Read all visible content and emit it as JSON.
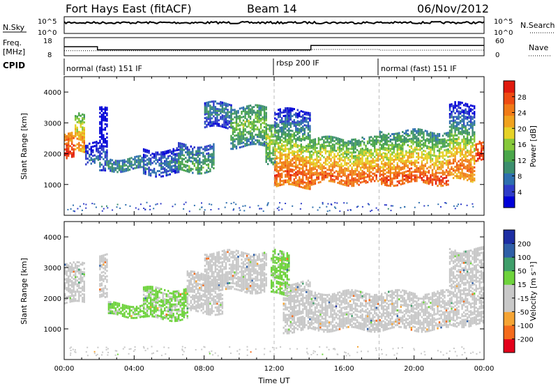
{
  "header": {
    "station": "Fort Hays East (fitACF)",
    "beam": "Beam 14",
    "date": "06/Nov/2012"
  },
  "status_panels": {
    "nsky_label": "N.Sky",
    "nsky_ticks": [
      "10^5",
      "10^0"
    ],
    "nsearch_label": "N.Search",
    "nsearch_ticks": [
      "10^5",
      "10^0"
    ],
    "freq_label": "Freq.",
    "freq_unit": "[MHz]",
    "freq_ticks": [
      "18",
      "8"
    ],
    "nave_label": "Nave",
    "nave_ticks": [
      "60",
      "0"
    ],
    "cpid_label": "CPID",
    "cpid_segments": [
      {
        "label": "normal (fast) 151 IF",
        "start_hour": 0,
        "end_hour": 12
      },
      {
        "label": "rbsp 200 IF",
        "start_hour": 12,
        "end_hour": 18
      },
      {
        "label": "normal (fast) 151 IF",
        "start_hour": 18,
        "end_hour": 24
      }
    ],
    "freq_steps": [
      [
        0,
        13
      ],
      [
        1.9,
        10.5
      ],
      [
        11.9,
        10.5
      ],
      [
        14.1,
        14
      ],
      [
        24,
        14
      ]
    ],
    "nave_steps": [
      [
        0,
        10
      ],
      [
        14.1,
        15
      ],
      [
        18,
        12
      ],
      [
        24,
        12
      ]
    ]
  },
  "chart_data": [
    {
      "type": "heatmap",
      "name": "power-panel",
      "title": "",
      "xlabel": "",
      "ylabel": "Slant Range [km]",
      "xlim": [
        0,
        24
      ],
      "ylim": [
        0,
        4500
      ],
      "yticks": [
        1000,
        2000,
        3000,
        4000
      ],
      "scan_markers_hour": [
        12,
        18
      ],
      "colorbar": {
        "label": "Power [dB]",
        "range": [
          0,
          32
        ],
        "ticks": [
          "4",
          "8",
          "12",
          "16",
          "20",
          "24",
          "28"
        ],
        "colors": [
          "#0000d8",
          "#2f3cc8",
          "#2e6fae",
          "#3c8e6e",
          "#4aa64a",
          "#86c83a",
          "#e6d227",
          "#f0a21e",
          "#f07a17",
          "#ee4b12",
          "#e01a0e"
        ]
      },
      "echo_bands": [
        {
          "start": 0.0,
          "end": 0.6,
          "floor": 1800,
          "top": 2600,
          "core": 1950,
          "strength": 30
        },
        {
          "start": 0.6,
          "end": 1.2,
          "floor": 2050,
          "top": 3300,
          "core": 2300,
          "strength": 24
        },
        {
          "start": 1.2,
          "end": 2.0,
          "floor": 1700,
          "top": 2400,
          "core": 1800,
          "strength": 7
        },
        {
          "start": 2.0,
          "end": 2.5,
          "floor": 1350,
          "top": 3400,
          "core": 1600,
          "strength": 8
        },
        {
          "start": 2.5,
          "end": 4.5,
          "floor": 1450,
          "top": 1850,
          "core": 1600,
          "strength": 10
        },
        {
          "start": 4.5,
          "end": 6.5,
          "floor": 1300,
          "top": 2100,
          "core": 1600,
          "strength": 8
        },
        {
          "start": 6.5,
          "end": 8.5,
          "floor": 1400,
          "top": 2300,
          "core": 1600,
          "strength": 13
        },
        {
          "start": 8.0,
          "end": 9.5,
          "floor": 2800,
          "top": 3600,
          "core": 3300,
          "strength": 9
        },
        {
          "start": 9.5,
          "end": 11.5,
          "floor": 2200,
          "top": 3500,
          "core": 2900,
          "strength": 16
        },
        {
          "start": 11.5,
          "end": 12.0,
          "floor": 1700,
          "top": 3000,
          "core": 2400,
          "strength": 18
        },
        {
          "start": 12.0,
          "end": 14.0,
          "floor": 900,
          "top": 3400,
          "core": 1250,
          "strength": 28
        },
        {
          "start": 14.0,
          "end": 18.0,
          "floor": 1000,
          "top": 2500,
          "core": 1150,
          "strength": 27
        },
        {
          "start": 18.0,
          "end": 22.0,
          "floor": 1000,
          "top": 2700,
          "core": 1150,
          "strength": 28
        },
        {
          "start": 22.0,
          "end": 23.5,
          "floor": 1100,
          "top": 3600,
          "core": 1500,
          "strength": 26
        },
        {
          "start": 23.5,
          "end": 24.0,
          "floor": 1800,
          "top": 2400,
          "core": 2000,
          "strength": 30
        }
      ]
    },
    {
      "type": "heatmap",
      "name": "velocity-panel",
      "title": "",
      "xlabel": "Time UT",
      "ylabel": "Slant Range [km]",
      "xlim": [
        0,
        24
      ],
      "ylim": [
        0,
        4500
      ],
      "yticks": [
        1000,
        2000,
        3000,
        4000
      ],
      "xticks": [
        "00:00",
        "04:00",
        "08:00",
        "12:00",
        "16:00",
        "20:00",
        "00:00"
      ],
      "scan_markers_hour": [
        12,
        18
      ],
      "colorbar": {
        "label": "Velocity [m s⁻¹]",
        "range": [
          -250,
          250
        ],
        "ticks": [
          "-200",
          "-100",
          "-50",
          "-15",
          "15",
          "50",
          "100",
          "200"
        ],
        "colors": [
          "#e3001b",
          "#f46b1c",
          "#f5a434",
          "#c8c8c8",
          "#c8c8c8",
          "#6ed33c",
          "#3f9e6a",
          "#2f5fa7",
          "#1d2ea3"
        ]
      },
      "echo_bands": [
        {
          "start": 0.0,
          "end": 1.2,
          "floor": 1800,
          "top": 3100,
          "velocity": 0
        },
        {
          "start": 2.0,
          "end": 2.5,
          "floor": 2000,
          "top": 3400,
          "velocity": 0
        },
        {
          "start": 2.5,
          "end": 4.5,
          "floor": 1400,
          "top": 1800,
          "velocity": 40
        },
        {
          "start": 4.5,
          "end": 7.0,
          "floor": 1300,
          "top": 2300,
          "velocity": 35
        },
        {
          "start": 7.0,
          "end": 9.0,
          "floor": 1500,
          "top": 2800,
          "velocity": 0
        },
        {
          "start": 8.0,
          "end": 11.5,
          "floor": 2200,
          "top": 3500,
          "velocity": 0
        },
        {
          "start": 11.8,
          "end": 12.8,
          "floor": 2100,
          "top": 3500,
          "velocity": 40
        },
        {
          "start": 12.5,
          "end": 14.0,
          "floor": 900,
          "top": 2500,
          "velocity": 0
        },
        {
          "start": 14.0,
          "end": 22.0,
          "floor": 950,
          "top": 2200,
          "velocity": 0
        },
        {
          "start": 22.0,
          "end": 24.0,
          "floor": 1100,
          "top": 3600,
          "velocity": 0
        }
      ]
    }
  ]
}
